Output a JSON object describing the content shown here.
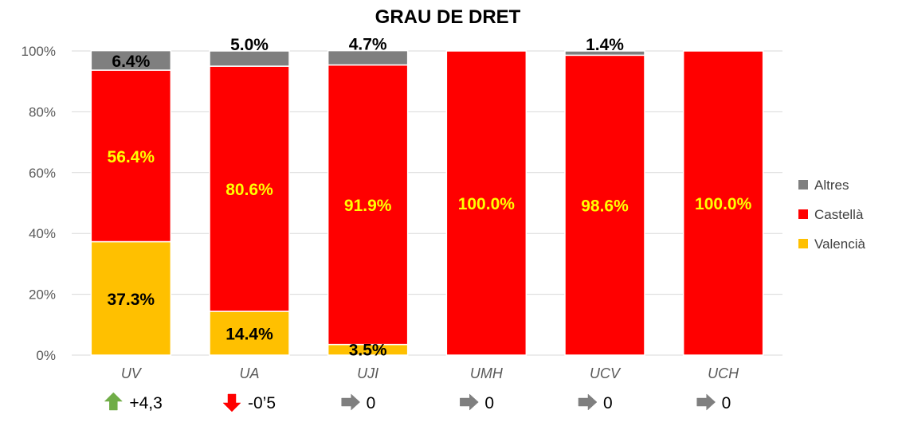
{
  "chart_data": {
    "type": "bar",
    "stacked": true,
    "title": "GRAU DE DRET",
    "categories": [
      "UV",
      "UA",
      "UJI",
      "UMH",
      "UCV",
      "UCH"
    ],
    "series": [
      {
        "name": "Valencià",
        "color": "#FFC000",
        "values": [
          37.3,
          14.4,
          3.5,
          0,
          0,
          0
        ],
        "labels": [
          "37.3%",
          "14.4%",
          "3.5%",
          "",
          "",
          ""
        ],
        "label_color": "#000000"
      },
      {
        "name": "Castellà",
        "color": "#FF0000",
        "values": [
          56.4,
          80.6,
          91.9,
          100.0,
          98.6,
          100.0
        ],
        "labels": [
          "56.4%",
          "80.6%",
          "91.9%",
          "100.0%",
          "98.6%",
          "100.0%"
        ],
        "label_color": "#FFFF00"
      },
      {
        "name": "Altres",
        "color": "#7F7F7F",
        "values": [
          6.4,
          5.0,
          4.7,
          0,
          1.4,
          0
        ],
        "labels": [
          "6.4%",
          "5.0%",
          "4.7%",
          "",
          "1.4%",
          ""
        ],
        "label_color": "#000000"
      }
    ],
    "ylim": [
      0,
      100
    ],
    "yticks": [
      "0%",
      "20%",
      "40%",
      "60%",
      "80%",
      "100%"
    ],
    "grid": true,
    "legend_position": "right",
    "legend_order": [
      "Altres",
      "Castellà",
      "Valencià"
    ],
    "changes": [
      {
        "direction": "up",
        "text": "+4,3",
        "color": "#70AD47"
      },
      {
        "direction": "down",
        "text": "-0’5",
        "color": "#FF0000"
      },
      {
        "direction": "right",
        "text": "0",
        "color": "#7F7F7F"
      },
      {
        "direction": "right",
        "text": "0",
        "color": "#7F7F7F"
      },
      {
        "direction": "right",
        "text": "0",
        "color": "#7F7F7F"
      },
      {
        "direction": "right",
        "text": "0",
        "color": "#7F7F7F"
      }
    ]
  }
}
